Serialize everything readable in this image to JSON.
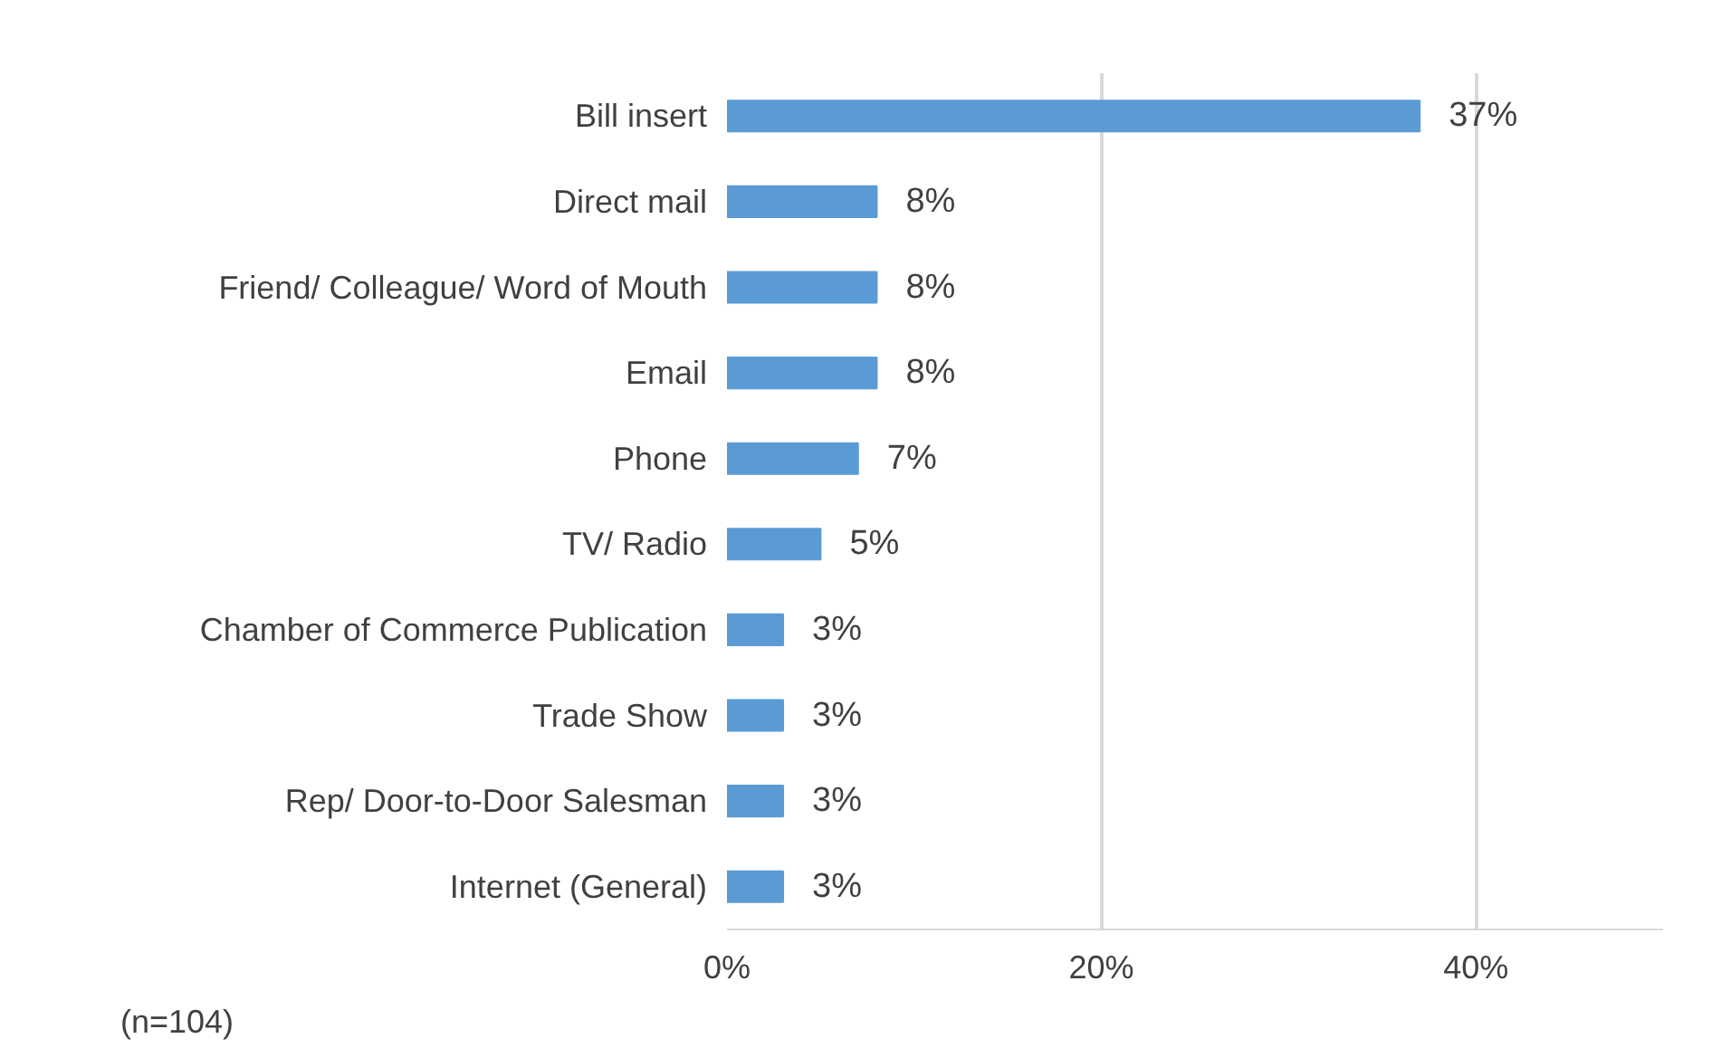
{
  "chart_data": {
    "type": "bar",
    "orientation": "horizontal",
    "categories": [
      "Bill insert",
      "Direct mail",
      "Friend/ Colleague/ Word of Mouth",
      "Email",
      "Phone",
      "TV/ Radio",
      "Chamber of Commerce Publication",
      "Trade Show",
      "Rep/ Door-to-Door Salesman",
      "Internet (General)"
    ],
    "values": [
      37,
      8,
      8,
      8,
      7,
      5,
      3,
      3,
      3,
      3
    ],
    "color": "#5b9bd5",
    "data_labels": true,
    "value_labels": [
      "37%",
      "8%",
      "8%",
      "8%",
      "7%",
      "5%",
      "3%",
      "3%",
      "3%",
      "3%"
    ],
    "xlim": [
      0,
      50
    ],
    "xticks": [
      {
        "value": 0,
        "label": "0%"
      },
      {
        "value": 20,
        "label": "20%"
      },
      {
        "value": 40,
        "label": "40%"
      }
    ],
    "grid": "x",
    "annotations": [
      "(n=104)"
    ]
  }
}
